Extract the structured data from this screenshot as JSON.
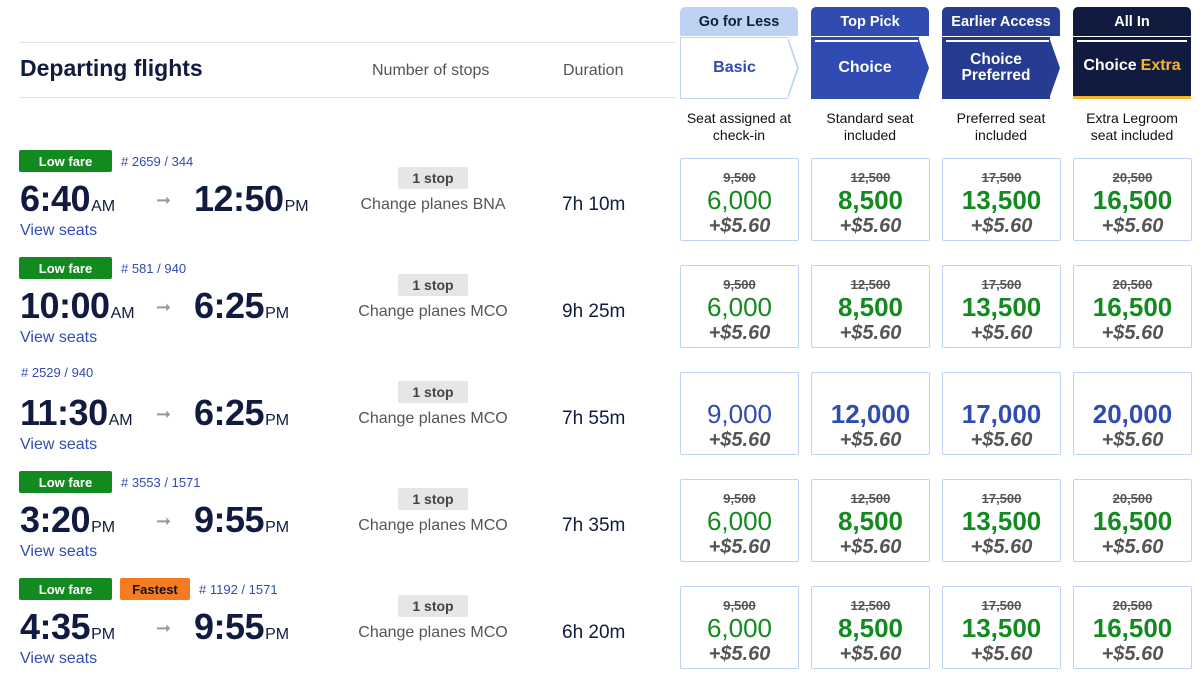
{
  "header": {
    "title": "Departing flights",
    "col_stops": "Number of stops",
    "col_duration": "Duration"
  },
  "tabs": [
    {
      "kicker": "Go for Less",
      "name": "Basic",
      "desc": "Seat assigned at check-in"
    },
    {
      "kicker": "Top Pick",
      "name": "Choice",
      "desc": "Standard seat included"
    },
    {
      "kicker": "Earlier Access",
      "name": "Choice Preferred",
      "desc": "Preferred seat included"
    },
    {
      "kicker": "All In",
      "name": "Choice",
      "name_accent": "Extra",
      "desc": "Extra Legroom seat included"
    }
  ],
  "colors": {
    "accent_blue": "#304cb2",
    "navy": "#111b40",
    "green": "#138a1f",
    "orange": "#f47b20",
    "gold": "#f5b52e"
  },
  "flights": [
    {
      "badges": [
        "Low fare"
      ],
      "flight_number": "# 2659 / 344",
      "depart_time": "6:40",
      "depart_ampm": "AM",
      "arrive_time": "12:50",
      "arrive_ampm": "PM",
      "view_seats": "View seats",
      "stops": "1 stop",
      "stop_detail": "Change planes BNA",
      "duration": "7h 10m",
      "fares": [
        {
          "old": "9,500",
          "points": "6,000",
          "tax": "+$5.60"
        },
        {
          "old": "12,500",
          "points": "8,500",
          "tax": "+$5.60"
        },
        {
          "old": "17,500",
          "points": "13,500",
          "tax": "+$5.60"
        },
        {
          "old": "20,500",
          "points": "16,500",
          "tax": "+$5.60"
        }
      ]
    },
    {
      "badges": [
        "Low fare"
      ],
      "flight_number": "# 581 / 940",
      "depart_time": "10:00",
      "depart_ampm": "AM",
      "arrive_time": "6:25",
      "arrive_ampm": "PM",
      "view_seats": "View seats",
      "stops": "1 stop",
      "stop_detail": "Change planes MCO",
      "duration": "9h 25m",
      "fares": [
        {
          "old": "9,500",
          "points": "6,000",
          "tax": "+$5.60"
        },
        {
          "old": "12,500",
          "points": "8,500",
          "tax": "+$5.60"
        },
        {
          "old": "17,500",
          "points": "13,500",
          "tax": "+$5.60"
        },
        {
          "old": "20,500",
          "points": "16,500",
          "tax": "+$5.60"
        }
      ]
    },
    {
      "badges": [],
      "flight_number": "# 2529 / 940",
      "depart_time": "11:30",
      "depart_ampm": "AM",
      "arrive_time": "6:25",
      "arrive_ampm": "PM",
      "view_seats": "View seats",
      "stops": "1 stop",
      "stop_detail": "Change planes MCO",
      "duration": "7h 55m",
      "fares": [
        {
          "old": "",
          "points": "9,000",
          "tax": "+$5.60"
        },
        {
          "old": "",
          "points": "12,000",
          "tax": "+$5.60"
        },
        {
          "old": "",
          "points": "17,000",
          "tax": "+$5.60"
        },
        {
          "old": "",
          "points": "20,000",
          "tax": "+$5.60"
        }
      ]
    },
    {
      "badges": [
        "Low fare"
      ],
      "flight_number": "# 3553 / 1571",
      "depart_time": "3:20",
      "depart_ampm": "PM",
      "arrive_time": "9:55",
      "arrive_ampm": "PM",
      "view_seats": "View seats",
      "stops": "1 stop",
      "stop_detail": "Change planes MCO",
      "duration": "7h 35m",
      "fares": [
        {
          "old": "9,500",
          "points": "6,000",
          "tax": "+$5.60"
        },
        {
          "old": "12,500",
          "points": "8,500",
          "tax": "+$5.60"
        },
        {
          "old": "17,500",
          "points": "13,500",
          "tax": "+$5.60"
        },
        {
          "old": "20,500",
          "points": "16,500",
          "tax": "+$5.60"
        }
      ]
    },
    {
      "badges": [
        "Low fare",
        "Fastest"
      ],
      "flight_number": "# 1192 / 1571",
      "depart_time": "4:35",
      "depart_ampm": "PM",
      "arrive_time": "9:55",
      "arrive_ampm": "PM",
      "view_seats": "View seats",
      "stops": "1 stop",
      "stop_detail": "Change planes MCO",
      "duration": "6h 20m",
      "fares": [
        {
          "old": "9,500",
          "points": "6,000",
          "tax": "+$5.60"
        },
        {
          "old": "12,500",
          "points": "8,500",
          "tax": "+$5.60"
        },
        {
          "old": "17,500",
          "points": "13,500",
          "tax": "+$5.60"
        },
        {
          "old": "20,500",
          "points": "16,500",
          "tax": "+$5.60"
        }
      ]
    }
  ]
}
